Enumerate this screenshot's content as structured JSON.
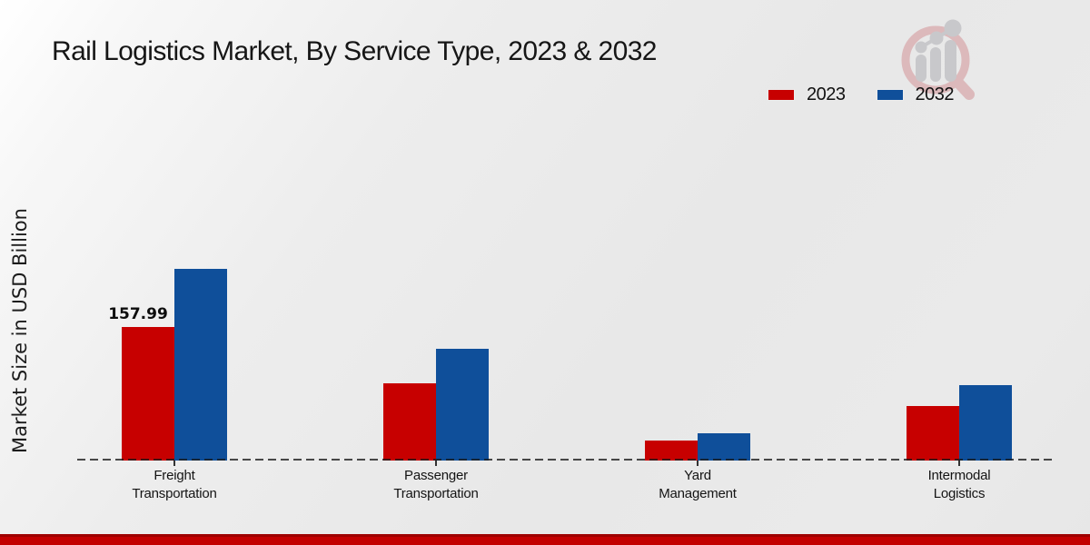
{
  "title": "Rail Logistics Market, By Service Type, 2023 & 2032",
  "y_axis_label": "Market Size in USD Billion",
  "legend": {
    "items": [
      {
        "label": "2023",
        "color": "#c70000"
      },
      {
        "label": "2032",
        "color": "#0f4f9a"
      }
    ]
  },
  "colors": {
    "series_2023": "#c70000",
    "series_2032": "#0f4f9a",
    "footer_band": "#c30000",
    "dashed_baseline": "#3a3a3a",
    "background": "#e9e9e9",
    "text": "#161616"
  },
  "watermark": {
    "name": "market-research-logo-watermark"
  },
  "chart_data": {
    "type": "bar",
    "title": "Rail Logistics Market, By Service Type, 2023 & 2032",
    "xlabel": "",
    "ylabel": "Market Size in USD Billion",
    "categories": [
      "Freight Transportation",
      "Passenger Transportation",
      "Yard Management",
      "Intermodal Logistics"
    ],
    "series": [
      {
        "name": "2023",
        "color": "#c70000",
        "values": [
          157.99,
          91,
          24,
          64
        ]
      },
      {
        "name": "2032",
        "color": "#0f4f9a",
        "values": [
          227,
          132,
          32,
          89
        ]
      }
    ],
    "bar_value_labels": [
      {
        "series_index": 0,
        "category_index": 0,
        "text": "157.99"
      }
    ],
    "ylim": [
      0,
      240
    ],
    "grid": false,
    "y_axis_ticks_visible": false,
    "x_baseline_style": "dashed",
    "legend_position": "top-right"
  }
}
